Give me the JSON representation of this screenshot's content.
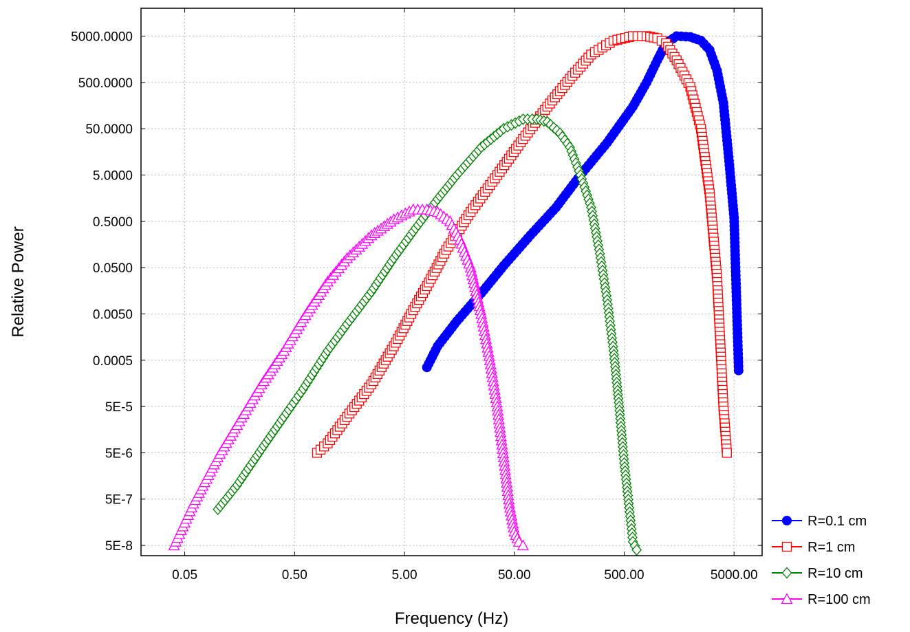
{
  "chart_data": {
    "type": "scatter",
    "xlabel": "Frequency (Hz)",
    "ylabel": "Relative Power",
    "x_scale": "log",
    "y_scale": "log",
    "xlim": [
      0.02,
      9000
    ],
    "ylim": [
      3e-08,
      20000
    ],
    "x_ticks": [
      {
        "value": 0.05,
        "label": "0.05"
      },
      {
        "value": 0.5,
        "label": "0.50"
      },
      {
        "value": 5,
        "label": "5.00"
      },
      {
        "value": 50,
        "label": "50.00"
      },
      {
        "value": 500,
        "label": "500.00"
      },
      {
        "value": 5000,
        "label": "5000.00"
      }
    ],
    "y_ticks": [
      {
        "value": 5e-08,
        "label": "5E-8"
      },
      {
        "value": 5e-07,
        "label": "5E-7"
      },
      {
        "value": 5e-06,
        "label": "5E-6"
      },
      {
        "value": 5e-05,
        "label": "5E-5"
      },
      {
        "value": 0.0005,
        "label": "0.0005"
      },
      {
        "value": 0.005,
        "label": "0.0050"
      },
      {
        "value": 0.05,
        "label": "0.0500"
      },
      {
        "value": 0.5,
        "label": "0.5000"
      },
      {
        "value": 5,
        "label": "5.0000"
      },
      {
        "value": 50,
        "label": "50.0000"
      },
      {
        "value": 500,
        "label": "500.0000"
      },
      {
        "value": 5000,
        "label": "5000.0000"
      }
    ],
    "grid": true,
    "legend_position": "bottom-right, outside plot",
    "series": [
      {
        "name": "R=0.1 cm",
        "color": "#0000ff",
        "marker": "circle-filled",
        "x": [
          8,
          10,
          15,
          25,
          40,
          70,
          120,
          200,
          350,
          600,
          800,
          1000,
          1200,
          1500,
          2000,
          2500,
          3000,
          3500,
          4000,
          4500,
          5000,
          5500
        ],
        "y": [
          0.00035,
          0.001,
          0.0035,
          0.014,
          0.055,
          0.25,
          1.0,
          5.0,
          25,
          150,
          500,
          1500,
          3500,
          5000,
          4800,
          4000,
          2500,
          900,
          180,
          10,
          0.6,
          0.0003
        ]
      },
      {
        "name": "R=1 cm",
        "color": "#ff0000",
        "marker": "square-open",
        "x": [
          0.8,
          1.0,
          1.5,
          2.5,
          4,
          6,
          8,
          12,
          20,
          35,
          60,
          100,
          160,
          250,
          400,
          600,
          800,
          1000,
          1200,
          1500,
          2000,
          2500,
          3000,
          3500,
          4000,
          4300
        ],
        "y": [
          5e-06,
          8e-06,
          3e-05,
          0.00015,
          0.001,
          0.006,
          0.02,
          0.12,
          0.8,
          5,
          30,
          150,
          600,
          2000,
          4000,
          5000,
          5000,
          4500,
          3500,
          1500,
          400,
          50,
          2,
          0.03,
          5e-05,
          5e-06
        ]
      },
      {
        "name": "R=10 cm",
        "color": "#008000",
        "marker": "diamond-open",
        "x": [
          0.1,
          0.15,
          0.25,
          0.4,
          0.6,
          1,
          1.5,
          2.5,
          4,
          6,
          10,
          15,
          25,
          40,
          60,
          80,
          100,
          130,
          160,
          200,
          250,
          300,
          350,
          400,
          450,
          500,
          550,
          600,
          650
        ],
        "y": [
          3e-07,
          1e-06,
          6e-06,
          3e-05,
          0.00012,
          0.0008,
          0.003,
          0.015,
          0.08,
          0.3,
          1.5,
          5,
          20,
          50,
          80,
          80,
          70,
          40,
          20,
          5,
          1,
          0.1,
          0.01,
          0.0008,
          5e-05,
          3e-06,
          4e-07,
          6e-08,
          4e-08
        ]
      },
      {
        "name": "R=100 cm",
        "color": "#ff00ff",
        "marker": "triangle-open",
        "x": [
          0.04,
          0.06,
          0.1,
          0.15,
          0.25,
          0.4,
          0.6,
          1,
          1.5,
          2.5,
          4,
          6,
          8,
          10,
          13,
          16,
          20,
          25,
          30,
          35,
          40,
          45,
          50,
          55,
          60
        ],
        "y": [
          5e-08,
          4e-07,
          4e-06,
          2e-05,
          0.00015,
          0.0008,
          0.004,
          0.025,
          0.08,
          0.25,
          0.55,
          0.9,
          0.9,
          0.8,
          0.5,
          0.2,
          0.05,
          0.005,
          0.0005,
          5e-05,
          4e-06,
          4e-07,
          1e-07,
          6e-08,
          5e-08
        ]
      }
    ]
  }
}
